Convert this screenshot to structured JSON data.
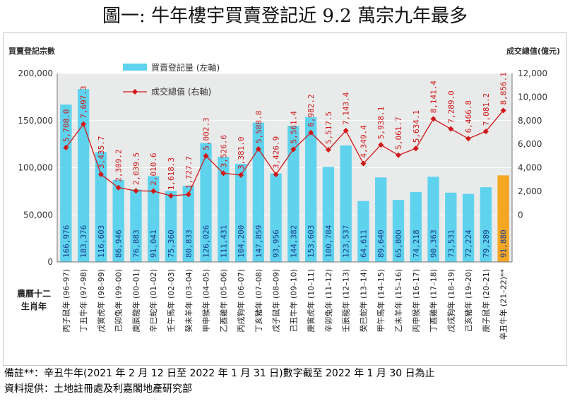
{
  "title": "圖一: 牛年樓宇買賣登記近 9.2 萬宗九年最多",
  "notes": {
    "remark": "備註**：辛丑牛年(2021 年 2 月 12 日至 2022 年 1 月 31 日)數字截至 2022 年 1 月 30 日為止",
    "source": "資料提供：土地註冊處及利嘉閣地產研究部"
  },
  "colors": {
    "bar": "#5fd3ee",
    "bar_highlight": "#f5a623",
    "line": "#d01818",
    "highlight_label": "#1a3fcf"
  },
  "chart_data": {
    "type": "bar",
    "left_axis_title": "買賣登記宗數",
    "right_axis_title": "成交總值(億元)",
    "zodiac_axis_label": [
      "農曆十二",
      "生肖年"
    ],
    "legend": [
      "買賣登記量 (左軸)",
      "成交總值 (右軸)"
    ],
    "y_left": {
      "min": 0,
      "max": 200000,
      "ticks": [
        "0",
        "50,000",
        "100,000",
        "150,000",
        "200,000"
      ]
    },
    "y_right": {
      "min": -4000,
      "max": 12000,
      "ticks": [
        "0",
        "2,000",
        "4,000",
        "6,000",
        "8,000",
        "10,000",
        "12,000"
      ]
    },
    "categories": [
      "丙子鼠年 (96–97)",
      "丁丑牛年 (97–98)",
      "戊寅虎年 (98–99)",
      "己卯兔年 (99–00)",
      "庚辰龍年 (00–01)",
      "辛巳蛇年 (01–02)",
      "壬午馬年 (02–03)",
      "癸未羊年 (03–04)",
      "甲申猴年 (04–05)",
      "乙酉雞年 (05–06)",
      "丙戌狗年 (06–07)",
      "丁亥豬年 (07–08)",
      "戊子鼠年 (08–09)",
      "己丑牛年 (09–10)",
      "庚寅虎年 (10–11)",
      "辛卯兔年 (11–12)",
      "壬辰龍年 (12–13)",
      "癸巳蛇年 (13–14)",
      "甲午馬年 (14–15)",
      "乙未羊年 (15–16)",
      "丙申猴年 (16–17)",
      "丁酉雞年 (17–18)",
      "戊戌狗年 (18–19)",
      "己亥豬年 (19–20)",
      "庚子鼠年 (20–21)",
      "辛丑牛年 (21–22)**"
    ],
    "series": [
      {
        "name": "買賣登記量 (左軸)",
        "axis": "left",
        "values": [
          166976,
          183376,
          116603,
          86946,
          76883,
          91041,
          75360,
          80833,
          126026,
          111431,
          104200,
          147859,
          93956,
          144382,
          153603,
          100784,
          123537,
          64611,
          89640,
          65800,
          74218,
          90363,
          73531,
          72224,
          79289,
          91880
        ],
        "labels": [
          "166,976",
          "183,376",
          "116,603",
          "86,946",
          "76,883",
          "91,041",
          "75,360",
          "80,833",
          "126,026",
          "111,431",
          "104,200",
          "147,859",
          "93,956",
          "144,382",
          "153,603",
          "100,784",
          "123,537",
          "64,611",
          "89,640",
          "65,800",
          "74,218",
          "90,363",
          "73,531",
          "72,224",
          "79,289",
          "91,880"
        ]
      },
      {
        "name": "成交總值 (右軸)",
        "axis": "right",
        "values": [
          5708.0,
          7697.3,
          3435.7,
          2309.2,
          2039.5,
          2010.6,
          1618.3,
          1727.7,
          5002.3,
          3526.6,
          3381.0,
          5588.8,
          3426.9,
          5561.4,
          6982.2,
          5517.5,
          7143.4,
          4349.4,
          5938.1,
          5061.7,
          5634.1,
          8141.4,
          7289.0,
          6466.8,
          7081.2,
          8856.1
        ],
        "labels": [
          "5,708.0",
          "7,697.3",
          "3,435.7",
          "2,309.2",
          "2,039.5",
          "2,010.6",
          "1,618.3",
          "1,727.7",
          "5,002.3",
          "3,526.6",
          "3,381.0",
          "5,588.8",
          "3,426.9",
          "5,561.4",
          "6,982.2",
          "5,517.5",
          "7,143.4",
          "4,349.4",
          "5,938.1",
          "5,061.7",
          "5,634.1",
          "8,141.4",
          "7,289.0",
          "6,466.8",
          "7,081.2",
          "8,856.1"
        ]
      }
    ]
  }
}
